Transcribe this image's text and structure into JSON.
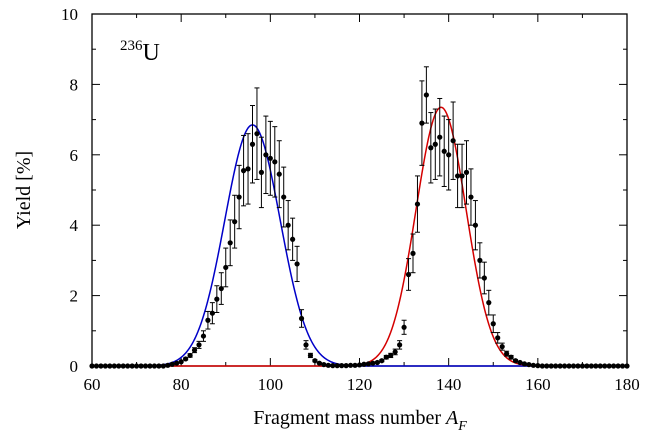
{
  "chart_data": {
    "type": "scatter",
    "annotation": {
      "superscript": "236",
      "base": "U"
    },
    "xlabel": {
      "text": "Fragment mass number ",
      "var": "A",
      "sub": "F"
    },
    "ylabel": "Yield [%]",
    "xlim": [
      60,
      180
    ],
    "ylim": [
      0,
      10
    ],
    "xticks": [
      60,
      80,
      100,
      120,
      140,
      160,
      180
    ],
    "yticks": [
      0,
      2,
      4,
      6,
      8,
      10
    ],
    "grid": false,
    "series": [
      {
        "kind": "points_with_errorbars",
        "color": "#000000",
        "x": [
          60,
          61,
          62,
          63,
          64,
          65,
          66,
          67,
          68,
          69,
          70,
          71,
          72,
          73,
          74,
          75,
          76,
          77,
          78,
          79,
          80,
          81,
          82,
          83,
          84,
          85,
          86,
          87,
          88,
          89,
          90,
          91,
          92,
          93,
          94,
          95,
          96,
          97,
          98,
          99,
          100,
          101,
          102,
          103,
          104,
          105,
          106,
          107,
          108,
          109,
          110,
          111,
          112,
          113,
          114,
          115,
          116,
          117,
          118,
          119,
          120,
          121,
          122,
          123,
          124,
          125,
          126,
          127,
          128,
          129,
          130,
          131,
          132,
          133,
          134,
          135,
          136,
          137,
          138,
          139,
          140,
          141,
          142,
          143,
          144,
          145,
          146,
          147,
          148,
          149,
          150,
          151,
          152,
          153,
          154,
          155,
          156,
          157,
          158,
          159,
          160,
          161,
          162,
          163,
          164,
          165,
          166,
          167,
          168,
          169,
          170,
          171,
          172,
          173,
          174,
          175,
          176,
          177,
          178,
          179,
          180
        ],
        "y": [
          0,
          0,
          0,
          0,
          0,
          0,
          0,
          0,
          0,
          0,
          0,
          0,
          0,
          0,
          0,
          0,
          0,
          0.02,
          0.05,
          0.08,
          0.12,
          0.2,
          0.3,
          0.45,
          0.6,
          0.85,
          1.3,
          1.5,
          1.9,
          2.2,
          2.8,
          3.5,
          4.1,
          4.8,
          5.55,
          5.6,
          6.3,
          6.6,
          5.5,
          6.0,
          5.9,
          5.8,
          5.45,
          4.8,
          4.0,
          3.6,
          2.9,
          1.35,
          0.6,
          0.3,
          0.15,
          0.08,
          0.04,
          0.02,
          0.01,
          0.01,
          0.01,
          0.01,
          0.02,
          0.02,
          0.03,
          0.05,
          0.06,
          0.08,
          0.1,
          0.15,
          0.25,
          0.3,
          0.4,
          0.6,
          1.1,
          2.6,
          3.2,
          4.6,
          6.9,
          7.7,
          6.2,
          6.3,
          6.5,
          6.1,
          6.0,
          6.4,
          5.4,
          5.4,
          5.5,
          4.8,
          4.0,
          3.0,
          2.5,
          1.8,
          1.2,
          0.8,
          0.55,
          0.35,
          0.25,
          0.15,
          0.1,
          0.06,
          0.04,
          0.02,
          0.01,
          0,
          0,
          0,
          0,
          0,
          0,
          0,
          0,
          0,
          0,
          0,
          0,
          0,
          0,
          0,
          0,
          0,
          0,
          0,
          0
        ],
        "yerr": [
          0,
          0,
          0,
          0,
          0,
          0,
          0,
          0,
          0,
          0,
          0,
          0,
          0,
          0,
          0,
          0,
          0,
          0,
          0,
          0,
          0,
          0.03,
          0.05,
          0.07,
          0.1,
          0.15,
          0.25,
          0.3,
          0.38,
          0.45,
          0.55,
          0.65,
          0.75,
          0.9,
          1.0,
          1.0,
          1.1,
          1.3,
          1.0,
          1.1,
          1.05,
          1.0,
          0.95,
          0.85,
          0.7,
          0.6,
          0.5,
          0.25,
          0.12,
          0.06,
          0.03,
          0.02,
          0,
          0,
          0,
          0,
          0,
          0,
          0,
          0,
          0,
          0,
          0,
          0,
          0.02,
          0.03,
          0.05,
          0.06,
          0.08,
          0.12,
          0.2,
          0.45,
          0.55,
          0.8,
          1.2,
          0.8,
          1.0,
          1.0,
          1.1,
          1.0,
          1.0,
          1.1,
          0.9,
          0.9,
          0.9,
          0.8,
          0.7,
          0.5,
          0.45,
          0.35,
          0.25,
          0.15,
          0.1,
          0.07,
          0.05,
          0.03,
          0.02,
          0,
          0,
          0,
          0,
          0,
          0,
          0,
          0,
          0,
          0,
          0,
          0,
          0,
          0,
          0,
          0,
          0,
          0,
          0,
          0,
          0,
          0,
          0,
          0
        ]
      },
      {
        "kind": "gaussian_fit",
        "color": "#0000c8",
        "amplitude": 6.85,
        "mean": 96,
        "sigma": 6.2
      },
      {
        "kind": "gaussian_fit",
        "color": "#d40000",
        "amplitude": 7.35,
        "mean": 138.3,
        "sigma": 5.6
      }
    ]
  }
}
